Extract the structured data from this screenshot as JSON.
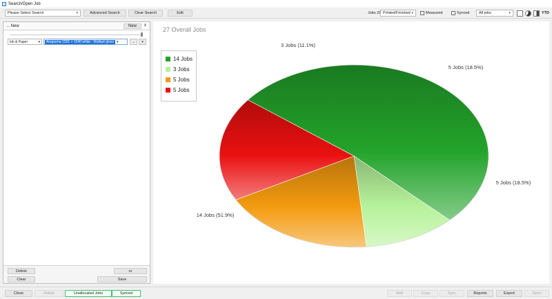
{
  "window": {
    "title": "Search/Open Job"
  },
  "toolbar": {
    "search_select": "Please Select Search",
    "advanced_search": "Advanced Search",
    "clear_search": "Clear Search",
    "edit": "Edit",
    "jobs_count_label": "Jobs 28",
    "status_select": "Printed/Finished",
    "measured_label": "Measured",
    "synced_label": "Synced",
    "range_select": "All jobs",
    "ytd_label": "YTD"
  },
  "left_panel": {
    "header_title": "... New",
    "new_button": "New",
    "close_glyph": "x",
    "filter_field": "Ink & Paper",
    "filter_value": "Anapurna 1501 + 1040 white - Multiart gloss",
    "small_btn_1": "...",
    "small_btn_2": "▾",
    "footer": {
      "delete": "Delete",
      "or": "or",
      "clear": "Clear",
      "save": "Save"
    }
  },
  "chart_data": {
    "type": "pie",
    "title": "27 Overall Jobs",
    "slices": [
      {
        "label": "14 Jobs (51.9%)",
        "value": 14,
        "legend": "14 Jobs",
        "color": "#22a32a"
      },
      {
        "label": "3 Jobs (11.1%)",
        "value": 3,
        "legend": "3 Jobs",
        "color": "#b6f29a"
      },
      {
        "label": "5 Jobs (18.5%)",
        "value": 5,
        "legend": "5 Jobs",
        "color": "#f39a0f"
      },
      {
        "label": "5 Jobs (18.5%)",
        "value": 5,
        "legend": "5 Jobs",
        "color": "#ea1010"
      }
    ],
    "legend_position": "top-left"
  },
  "bottom_bar": {
    "close": "Close",
    "delete": "Delete",
    "unallocated": "Unallocated Jobs",
    "synced": "Synced",
    "add": "Add",
    "copy": "Copy",
    "sync": "Sync",
    "reports": "Reports",
    "export": "Export",
    "open": "Open"
  }
}
